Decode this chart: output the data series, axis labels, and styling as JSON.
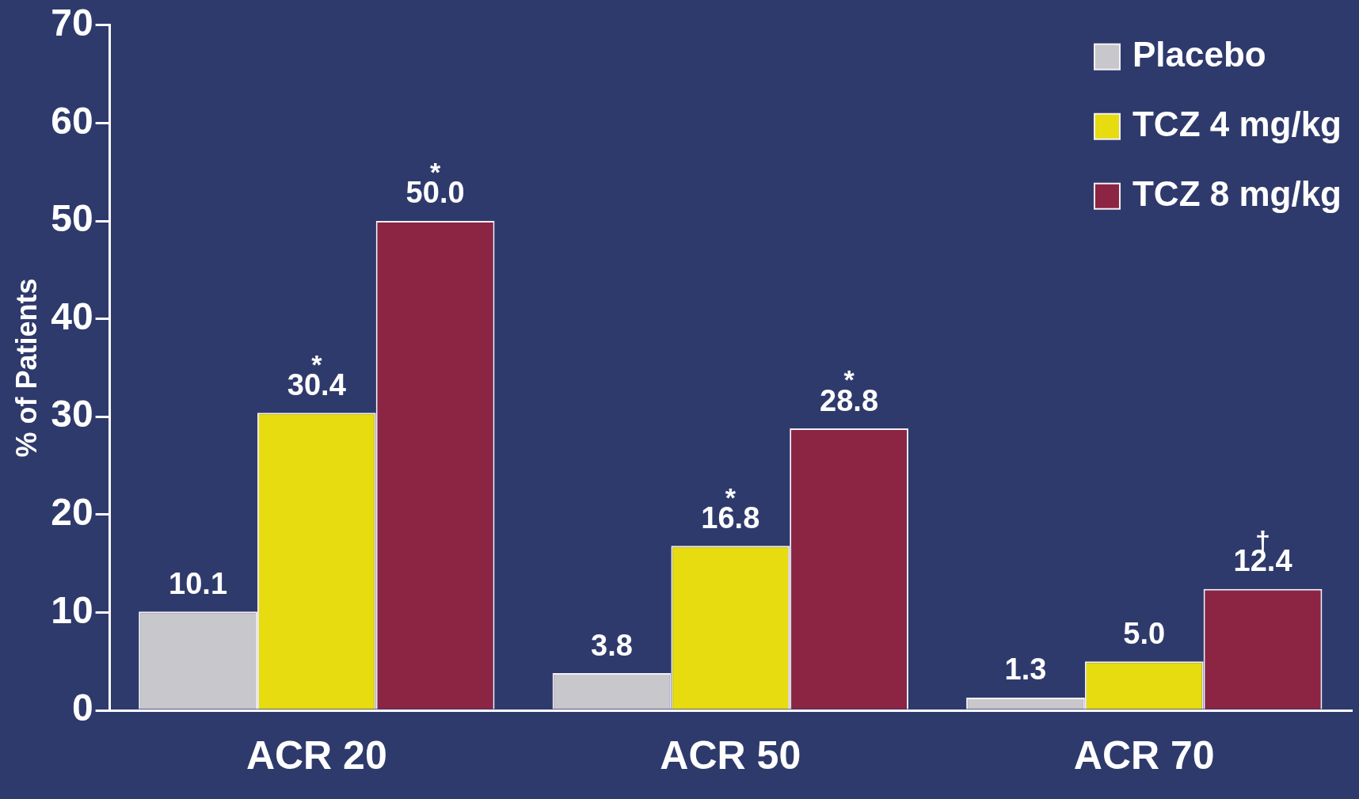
{
  "chart_data": {
    "type": "bar",
    "ylabel": "% of Patients",
    "categories": [
      "ACR 20",
      "ACR 50",
      "ACR 70"
    ],
    "series": [
      {
        "name": "Placebo",
        "color": "#c8c8cc",
        "values": [
          10.1,
          3.8,
          1.3
        ],
        "value_labels": [
          "10.1",
          "3.8",
          "1.3"
        ]
      },
      {
        "name": "TCZ 4 mg/kg",
        "color": "#e6dc10",
        "values": [
          30.4,
          16.8,
          5.0
        ],
        "value_labels": [
          "30.4",
          "16.8",
          "5.0"
        ]
      },
      {
        "name": "TCZ 8 mg/kg",
        "color": "#8c2444",
        "values": [
          50.0,
          28.8,
          12.4
        ],
        "value_labels": [
          "50.0",
          "28.8",
          "12.4"
        ]
      }
    ],
    "annotations": [
      {
        "text": "*",
        "x": "ACR 20",
        "y": 30.4
      },
      {
        "text": "*",
        "x": "ACR 50",
        "y": 16.8
      },
      "*",
      "*",
      "†"
    ],
    "ylim": [
      0,
      70
    ],
    "yticks": [
      0,
      10,
      20,
      30,
      40,
      50,
      60,
      70
    ],
    "legend": "top right",
    "grid": false
  }
}
